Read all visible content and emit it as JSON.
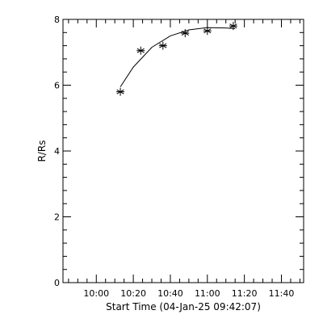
{
  "chart_data": {
    "type": "scatter",
    "title": "",
    "xlabel": "Start Time (04-Jan-25 09:42:07)",
    "ylabel": "R/Rs",
    "x_axis": {
      "units": "time",
      "tick_labels": [
        "10:00",
        "10:20",
        "10:40",
        "11:00",
        "11:20",
        "11:40"
      ],
      "tick_values": [
        "10:00",
        "10:20",
        "10:40",
        "11:00",
        "11:20",
        "11:40"
      ],
      "range": [
        "09:42",
        "11:52"
      ]
    },
    "y_axis": {
      "tick_labels": [
        "0",
        "2",
        "4",
        "6",
        "8"
      ],
      "tick_values": [
        0,
        2,
        4,
        6,
        8
      ],
      "range": [
        0,
        8
      ]
    },
    "grid": false,
    "series": [
      {
        "marker": "asterisk",
        "x": [
          "10:13",
          "10:24",
          "10:36",
          "10:48",
          "11:00",
          "11:14"
        ],
        "y": [
          5.8,
          7.05,
          7.2,
          7.58,
          7.65,
          7.8
        ]
      }
    ],
    "fit_curve": {
      "x": [
        "10:13",
        "10:20",
        "10:30",
        "10:40",
        "10:50",
        "11:00",
        "11:10",
        "11:15"
      ],
      "y": [
        5.95,
        6.55,
        7.15,
        7.5,
        7.68,
        7.75,
        7.74,
        7.72
      ]
    }
  }
}
